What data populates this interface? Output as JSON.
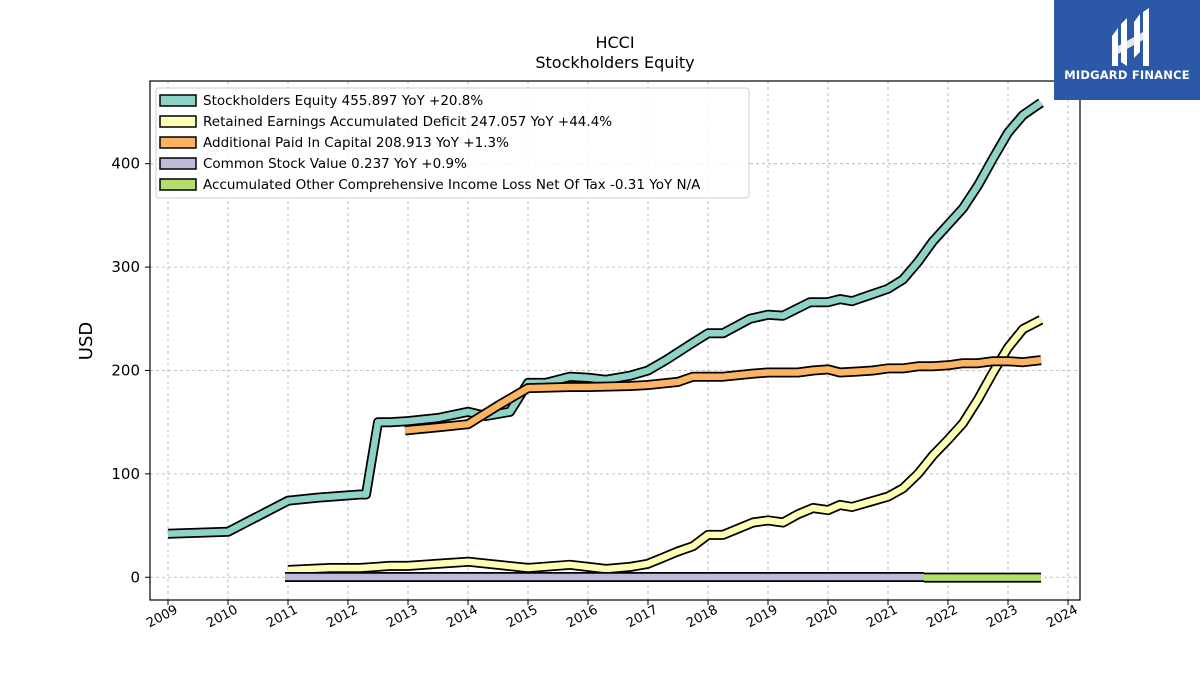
{
  "chart_data": {
    "type": "line",
    "title": "HCCI",
    "subtitle": "Stockholders  Equity",
    "ylabel": "USD",
    "xlabel": "",
    "xlim": [
      2008.7,
      2024.2
    ],
    "ylim": [
      -22,
      480
    ],
    "y_ticks": [
      0,
      100,
      200,
      300,
      400
    ],
    "x_ticks": [
      "2009",
      "2010",
      "2011",
      "2012",
      "2013",
      "2014",
      "2015",
      "2016",
      "2017",
      "2018",
      "2019",
      "2020",
      "2021",
      "2022",
      "2023",
      "2024"
    ],
    "grid": true,
    "legend_position": "top-left",
    "series": [
      {
        "name": "Stockholders Equity  455.897 YoY +20.8%",
        "color": "#8dd3c7",
        "x": [
          2009.0,
          2010.0,
          2011.0,
          2011.5,
          2012.2,
          2012.3,
          2012.5,
          2012.7,
          2013.0,
          2013.5,
          2014.0,
          2014.3,
          2014.7,
          2015.0,
          2015.3,
          2015.7,
          2016.0,
          2016.3,
          2016.7,
          2017.0,
          2017.3,
          2017.7,
          2018.0,
          2018.25,
          2018.7,
          2019.0,
          2019.25,
          2019.7,
          2020.0,
          2020.2,
          2020.4,
          2020.7,
          2021.0,
          2021.25,
          2021.5,
          2021.75,
          2022.0,
          2022.25,
          2022.5,
          2022.75,
          2023.0,
          2023.25,
          2023.55
        ],
        "values": [
          42,
          44,
          74,
          77,
          80,
          80,
          150,
          150,
          151,
          154,
          160,
          156,
          160,
          188,
          188,
          194,
          193,
          191,
          195,
          200,
          210,
          225,
          236,
          236,
          250,
          254,
          253,
          266,
          266,
          269,
          267,
          273,
          279,
          288,
          305,
          325,
          341,
          357,
          379,
          405,
          430,
          447,
          459
        ]
      },
      {
        "name": "Retained Earnings Accumulated Deficit  247.057 YoY +44.4%",
        "color": "#ffffb3",
        "x": [
          2011.0,
          2011.7,
          2012.2,
          2012.7,
          2013.0,
          2013.5,
          2014.0,
          2014.5,
          2015.0,
          2015.7,
          2016.0,
          2016.3,
          2016.7,
          2017.0,
          2017.25,
          2017.5,
          2017.75,
          2018.0,
          2018.25,
          2018.75,
          2019.0,
          2019.25,
          2019.5,
          2019.75,
          2020.0,
          2020.2,
          2020.4,
          2020.7,
          2021.0,
          2021.25,
          2021.5,
          2021.75,
          2022.0,
          2022.25,
          2022.5,
          2022.75,
          2023.0,
          2023.25,
          2023.55
        ],
        "values": [
          7,
          9,
          9,
          11,
          11,
          13,
          15,
          12,
          9,
          12,
          10,
          8,
          10,
          13,
          19,
          25,
          30,
          41,
          41,
          53,
          55,
          53,
          61,
          67,
          65,
          70,
          68,
          73,
          78,
          86,
          100,
          118,
          133,
          149,
          172,
          198,
          222,
          240,
          249
        ]
      },
      {
        "name": "Additional Paid In Capital  208.913 YoY +1.3%",
        "color": "#fdb462",
        "x": [
          2012.95,
          2013.5,
          2014.0,
          2014.5,
          2015.0,
          2015.7,
          2016.0,
          2016.7,
          2017.0,
          2017.5,
          2017.75,
          2018.0,
          2018.25,
          2018.75,
          2019.0,
          2019.5,
          2019.75,
          2020.0,
          2020.2,
          2020.5,
          2020.75,
          2021.0,
          2021.25,
          2021.5,
          2021.75,
          2022.0,
          2022.25,
          2022.5,
          2022.75,
          2023.0,
          2023.25,
          2023.55
        ],
        "values": [
          142,
          145,
          148,
          166,
          183,
          184,
          184,
          185,
          186,
          189,
          194,
          194,
          194,
          197,
          198,
          198,
          200,
          201,
          198,
          199,
          200,
          202,
          202,
          204,
          204,
          205,
          207,
          207,
          209,
          209,
          208,
          210
        ]
      },
      {
        "name": "Common Stock Value  0.237 YoY +0.9%",
        "color": "#bebada",
        "x": [
          2010.95,
          2021.6
        ],
        "values": [
          0.23,
          0.24
        ]
      },
      {
        "name": "Accumulated Other Comprehensive Income Loss Net Of Tax  -0.31 YoY N/A",
        "color": "#b3de69",
        "x": [
          2021.6,
          2023.55
        ],
        "values": [
          -0.3,
          -0.31
        ]
      }
    ]
  },
  "logo": {
    "text": "MIDGARD FINANCE"
  }
}
